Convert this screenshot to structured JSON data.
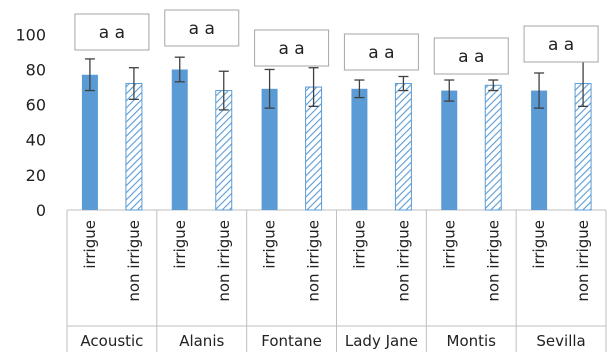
{
  "chart_data": {
    "type": "bar",
    "categories": [
      "Acoustic",
      "Alanis",
      "Fontane",
      "Lady Jane",
      "Montis",
      "Sevilla"
    ],
    "conditions": [
      "irrigue",
      "non irrigue"
    ],
    "series": [
      {
        "name": "irrigue",
        "values": [
          77,
          80,
          69,
          69,
          68,
          68
        ],
        "errors": [
          9,
          7,
          11,
          5,
          6,
          10
        ],
        "fill": "solid"
      },
      {
        "name": "non irrigue",
        "values": [
          72,
          68,
          70,
          72,
          71,
          72
        ],
        "errors": [
          9,
          11,
          11,
          4,
          3,
          13
        ],
        "fill": "hatched"
      }
    ],
    "significance_letters": [
      "a a",
      "a a",
      "a a",
      "a a",
      "a a",
      "a a"
    ],
    "yticks": [
      0,
      20,
      40,
      60,
      80,
      100
    ],
    "ylim": [
      0,
      115
    ],
    "grid": false,
    "legend": "none",
    "title": "",
    "xlabel": "",
    "ylabel": ""
  },
  "colors": {
    "bar": "#5b9bd5",
    "hatch": "#5b9bd5",
    "hatch_background": "#ffffff",
    "error_bar": "#404040",
    "axis": "#bfbfbf",
    "text": "#222222",
    "letter_box_border": "#a6a6a6"
  }
}
